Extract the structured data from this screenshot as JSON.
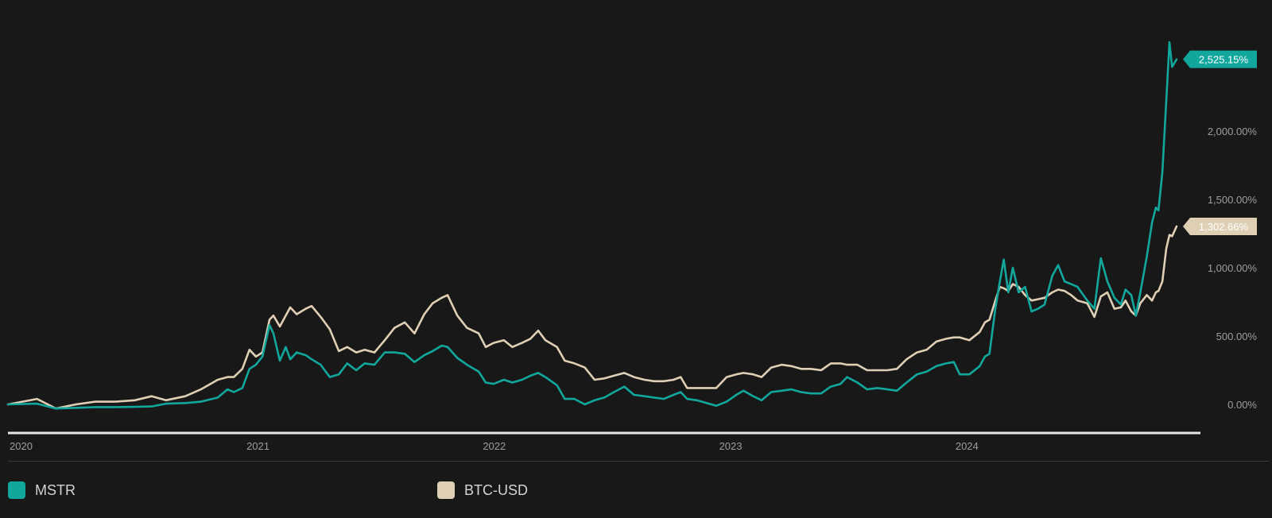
{
  "chart_data": {
    "type": "line",
    "title": "",
    "xlabel": "",
    "ylabel": "",
    "unit": "%",
    "x_range": [
      "2020-01-01",
      "2024-12-10"
    ],
    "ylim": [
      -150,
      2700
    ],
    "x_ticks": [
      "2020",
      "2021",
      "2022",
      "2023",
      "2024"
    ],
    "y_ticks": [
      "0.00%",
      "500.00%",
      "1,000.00%",
      "1,500.00%",
      "2,000.00%"
    ],
    "y_tick_values": [
      0,
      500,
      1000,
      1500,
      2000
    ],
    "grid": false,
    "legend": "bottom",
    "series": [
      {
        "name": "MSTR",
        "color": "#12a79d",
        "end_label": "2,525.15%",
        "end_value": 2525.15,
        "points": [
          [
            "2020-01-01",
            0
          ],
          [
            "2020-02-15",
            5
          ],
          [
            "2020-03-15",
            -30
          ],
          [
            "2020-04-15",
            -25
          ],
          [
            "2020-05-15",
            -20
          ],
          [
            "2020-06-15",
            -20
          ],
          [
            "2020-07-15",
            -18
          ],
          [
            "2020-08-10",
            -15
          ],
          [
            "2020-09-01",
            5
          ],
          [
            "2020-10-01",
            10
          ],
          [
            "2020-10-25",
            20
          ],
          [
            "2020-11-20",
            50
          ],
          [
            "2020-12-05",
            110
          ],
          [
            "2020-12-15",
            90
          ],
          [
            "2020-12-28",
            120
          ],
          [
            "2021-01-08",
            260
          ],
          [
            "2021-01-18",
            290
          ],
          [
            "2021-01-28",
            350
          ],
          [
            "2021-02-08",
            580
          ],
          [
            "2021-02-14",
            520
          ],
          [
            "2021-02-24",
            320
          ],
          [
            "2021-03-05",
            420
          ],
          [
            "2021-03-12",
            330
          ],
          [
            "2021-03-22",
            380
          ],
          [
            "2021-04-05",
            360
          ],
          [
            "2021-04-14",
            330
          ],
          [
            "2021-04-28",
            290
          ],
          [
            "2021-05-12",
            200
          ],
          [
            "2021-05-26",
            220
          ],
          [
            "2021-06-08",
            300
          ],
          [
            "2021-06-22",
            250
          ],
          [
            "2021-07-05",
            300
          ],
          [
            "2021-07-20",
            290
          ],
          [
            "2021-08-05",
            380
          ],
          [
            "2021-08-20",
            380
          ],
          [
            "2021-09-05",
            370
          ],
          [
            "2021-09-20",
            310
          ],
          [
            "2021-10-05",
            360
          ],
          [
            "2021-10-18",
            390
          ],
          [
            "2021-11-01",
            430
          ],
          [
            "2021-11-10",
            420
          ],
          [
            "2021-11-25",
            340
          ],
          [
            "2021-12-10",
            290
          ],
          [
            "2021-12-28",
            240
          ],
          [
            "2022-01-08",
            160
          ],
          [
            "2022-01-20",
            150
          ],
          [
            "2022-02-05",
            180
          ],
          [
            "2022-02-18",
            160
          ],
          [
            "2022-03-05",
            180
          ],
          [
            "2022-03-18",
            210
          ],
          [
            "2022-03-30",
            230
          ],
          [
            "2022-04-10",
            200
          ],
          [
            "2022-04-28",
            140
          ],
          [
            "2022-05-10",
            40
          ],
          [
            "2022-05-25",
            40
          ],
          [
            "2022-06-10",
            0
          ],
          [
            "2022-06-25",
            30
          ],
          [
            "2022-07-10",
            50
          ],
          [
            "2022-07-25",
            90
          ],
          [
            "2022-08-10",
            130
          ],
          [
            "2022-08-25",
            70
          ],
          [
            "2022-09-10",
            60
          ],
          [
            "2022-09-25",
            50
          ],
          [
            "2022-10-10",
            40
          ],
          [
            "2022-10-25",
            70
          ],
          [
            "2022-11-05",
            90
          ],
          [
            "2022-11-15",
            40
          ],
          [
            "2022-11-30",
            30
          ],
          [
            "2022-12-15",
            10
          ],
          [
            "2022-12-30",
            -10
          ],
          [
            "2023-01-15",
            20
          ],
          [
            "2023-01-30",
            70
          ],
          [
            "2023-02-10",
            100
          ],
          [
            "2023-02-25",
            60
          ],
          [
            "2023-03-10",
            30
          ],
          [
            "2023-03-25",
            90
          ],
          [
            "2023-04-10",
            100
          ],
          [
            "2023-04-25",
            110
          ],
          [
            "2023-05-10",
            90
          ],
          [
            "2023-05-25",
            80
          ],
          [
            "2023-06-10",
            80
          ],
          [
            "2023-06-25",
            130
          ],
          [
            "2023-07-10",
            150
          ],
          [
            "2023-07-20",
            200
          ],
          [
            "2023-08-05",
            160
          ],
          [
            "2023-08-20",
            110
          ],
          [
            "2023-09-05",
            120
          ],
          [
            "2023-09-20",
            110
          ],
          [
            "2023-10-05",
            100
          ],
          [
            "2023-10-20",
            160
          ],
          [
            "2023-11-05",
            220
          ],
          [
            "2023-11-20",
            240
          ],
          [
            "2023-12-05",
            280
          ],
          [
            "2023-12-20",
            300
          ],
          [
            "2024-01-01",
            310
          ],
          [
            "2024-01-10",
            220
          ],
          [
            "2024-01-25",
            220
          ],
          [
            "2024-02-10",
            280
          ],
          [
            "2024-02-18",
            350
          ],
          [
            "2024-02-25",
            370
          ],
          [
            "2024-03-05",
            700
          ],
          [
            "2024-03-12",
            900
          ],
          [
            "2024-03-18",
            1060
          ],
          [
            "2024-03-25",
            820
          ],
          [
            "2024-04-01",
            1000
          ],
          [
            "2024-04-10",
            820
          ],
          [
            "2024-04-20",
            860
          ],
          [
            "2024-04-30",
            680
          ],
          [
            "2024-05-10",
            700
          ],
          [
            "2024-05-20",
            730
          ],
          [
            "2024-06-01",
            940
          ],
          [
            "2024-06-10",
            1020
          ],
          [
            "2024-06-20",
            900
          ],
          [
            "2024-06-30",
            880
          ],
          [
            "2024-07-10",
            860
          ],
          [
            "2024-07-25",
            760
          ],
          [
            "2024-08-05",
            700
          ],
          [
            "2024-08-15",
            1070
          ],
          [
            "2024-08-25",
            900
          ],
          [
            "2024-09-05",
            780
          ],
          [
            "2024-09-15",
            730
          ],
          [
            "2024-09-22",
            840
          ],
          [
            "2024-10-01",
            800
          ],
          [
            "2024-10-08",
            650
          ],
          [
            "2024-10-15",
            820
          ],
          [
            "2024-10-25",
            1080
          ],
          [
            "2024-11-02",
            1330
          ],
          [
            "2024-11-08",
            1440
          ],
          [
            "2024-11-12",
            1420
          ],
          [
            "2024-11-18",
            1700
          ],
          [
            "2024-11-24",
            2220
          ],
          [
            "2024-11-29",
            2650
          ],
          [
            "2024-12-03",
            2470
          ],
          [
            "2024-12-10",
            2525.15
          ]
        ]
      },
      {
        "name": "BTC-USD",
        "color": "#dfcfb4",
        "end_label": "1,302.66%",
        "end_value": 1302.66,
        "points": [
          [
            "2020-01-01",
            0
          ],
          [
            "2020-02-15",
            40
          ],
          [
            "2020-03-15",
            -30
          ],
          [
            "2020-04-15",
            0
          ],
          [
            "2020-05-15",
            20
          ],
          [
            "2020-06-15",
            20
          ],
          [
            "2020-07-15",
            30
          ],
          [
            "2020-08-10",
            60
          ],
          [
            "2020-09-01",
            30
          ],
          [
            "2020-10-01",
            60
          ],
          [
            "2020-10-25",
            110
          ],
          [
            "2020-11-20",
            180
          ],
          [
            "2020-12-05",
            200
          ],
          [
            "2020-12-15",
            200
          ],
          [
            "2020-12-28",
            260
          ],
          [
            "2021-01-08",
            400
          ],
          [
            "2021-01-18",
            350
          ],
          [
            "2021-01-28",
            380
          ],
          [
            "2021-02-08",
            620
          ],
          [
            "2021-02-14",
            650
          ],
          [
            "2021-02-24",
            570
          ],
          [
            "2021-03-05",
            650
          ],
          [
            "2021-03-12",
            710
          ],
          [
            "2021-03-22",
            660
          ],
          [
            "2021-04-05",
            700
          ],
          [
            "2021-04-14",
            720
          ],
          [
            "2021-04-28",
            640
          ],
          [
            "2021-05-12",
            550
          ],
          [
            "2021-05-26",
            390
          ],
          [
            "2021-06-08",
            420
          ],
          [
            "2021-06-22",
            380
          ],
          [
            "2021-07-05",
            400
          ],
          [
            "2021-07-20",
            380
          ],
          [
            "2021-08-05",
            470
          ],
          [
            "2021-08-20",
            560
          ],
          [
            "2021-09-05",
            600
          ],
          [
            "2021-09-20",
            520
          ],
          [
            "2021-10-05",
            660
          ],
          [
            "2021-10-18",
            740
          ],
          [
            "2021-11-01",
            780
          ],
          [
            "2021-11-10",
            800
          ],
          [
            "2021-11-25",
            650
          ],
          [
            "2021-12-10",
            560
          ],
          [
            "2021-12-28",
            520
          ],
          [
            "2022-01-08",
            420
          ],
          [
            "2022-01-20",
            450
          ],
          [
            "2022-02-05",
            470
          ],
          [
            "2022-02-18",
            420
          ],
          [
            "2022-03-05",
            450
          ],
          [
            "2022-03-18",
            480
          ],
          [
            "2022-03-30",
            540
          ],
          [
            "2022-04-10",
            470
          ],
          [
            "2022-04-28",
            420
          ],
          [
            "2022-05-10",
            320
          ],
          [
            "2022-05-25",
            300
          ],
          [
            "2022-06-10",
            270
          ],
          [
            "2022-06-25",
            180
          ],
          [
            "2022-07-10",
            190
          ],
          [
            "2022-07-25",
            210
          ],
          [
            "2022-08-10",
            230
          ],
          [
            "2022-08-25",
            200
          ],
          [
            "2022-09-10",
            180
          ],
          [
            "2022-09-25",
            170
          ],
          [
            "2022-10-10",
            170
          ],
          [
            "2022-10-25",
            180
          ],
          [
            "2022-11-05",
            200
          ],
          [
            "2022-11-15",
            120
          ],
          [
            "2022-11-30",
            120
          ],
          [
            "2022-12-15",
            120
          ],
          [
            "2022-12-30",
            120
          ],
          [
            "2023-01-15",
            200
          ],
          [
            "2023-01-30",
            220
          ],
          [
            "2023-02-10",
            230
          ],
          [
            "2023-02-25",
            220
          ],
          [
            "2023-03-10",
            200
          ],
          [
            "2023-03-25",
            270
          ],
          [
            "2023-04-10",
            290
          ],
          [
            "2023-04-25",
            280
          ],
          [
            "2023-05-10",
            260
          ],
          [
            "2023-05-25",
            260
          ],
          [
            "2023-06-10",
            250
          ],
          [
            "2023-06-25",
            300
          ],
          [
            "2023-07-10",
            300
          ],
          [
            "2023-07-20",
            290
          ],
          [
            "2023-08-05",
            290
          ],
          [
            "2023-08-20",
            250
          ],
          [
            "2023-09-05",
            250
          ],
          [
            "2023-09-20",
            250
          ],
          [
            "2023-10-05",
            260
          ],
          [
            "2023-10-20",
            330
          ],
          [
            "2023-11-05",
            380
          ],
          [
            "2023-11-20",
            400
          ],
          [
            "2023-12-05",
            460
          ],
          [
            "2023-12-20",
            480
          ],
          [
            "2024-01-01",
            490
          ],
          [
            "2024-01-10",
            490
          ],
          [
            "2024-01-25",
            470
          ],
          [
            "2024-02-10",
            530
          ],
          [
            "2024-02-18",
            600
          ],
          [
            "2024-02-25",
            620
          ],
          [
            "2024-03-05",
            760
          ],
          [
            "2024-03-12",
            860
          ],
          [
            "2024-03-18",
            850
          ],
          [
            "2024-03-25",
            830
          ],
          [
            "2024-04-01",
            880
          ],
          [
            "2024-04-10",
            860
          ],
          [
            "2024-04-20",
            800
          ],
          [
            "2024-04-30",
            760
          ],
          [
            "2024-05-10",
            770
          ],
          [
            "2024-05-20",
            780
          ],
          [
            "2024-06-01",
            820
          ],
          [
            "2024-06-10",
            840
          ],
          [
            "2024-06-20",
            830
          ],
          [
            "2024-06-30",
            800
          ],
          [
            "2024-07-10",
            760
          ],
          [
            "2024-07-25",
            740
          ],
          [
            "2024-08-05",
            640
          ],
          [
            "2024-08-15",
            790
          ],
          [
            "2024-08-25",
            820
          ],
          [
            "2024-09-05",
            700
          ],
          [
            "2024-09-15",
            710
          ],
          [
            "2024-09-22",
            760
          ],
          [
            "2024-10-01",
            680
          ],
          [
            "2024-10-08",
            650
          ],
          [
            "2024-10-15",
            740
          ],
          [
            "2024-10-25",
            800
          ],
          [
            "2024-11-02",
            760
          ],
          [
            "2024-11-08",
            820
          ],
          [
            "2024-11-12",
            830
          ],
          [
            "2024-11-18",
            900
          ],
          [
            "2024-11-24",
            1140
          ],
          [
            "2024-11-29",
            1240
          ],
          [
            "2024-12-03",
            1230
          ],
          [
            "2024-12-10",
            1302.66
          ]
        ]
      }
    ]
  }
}
